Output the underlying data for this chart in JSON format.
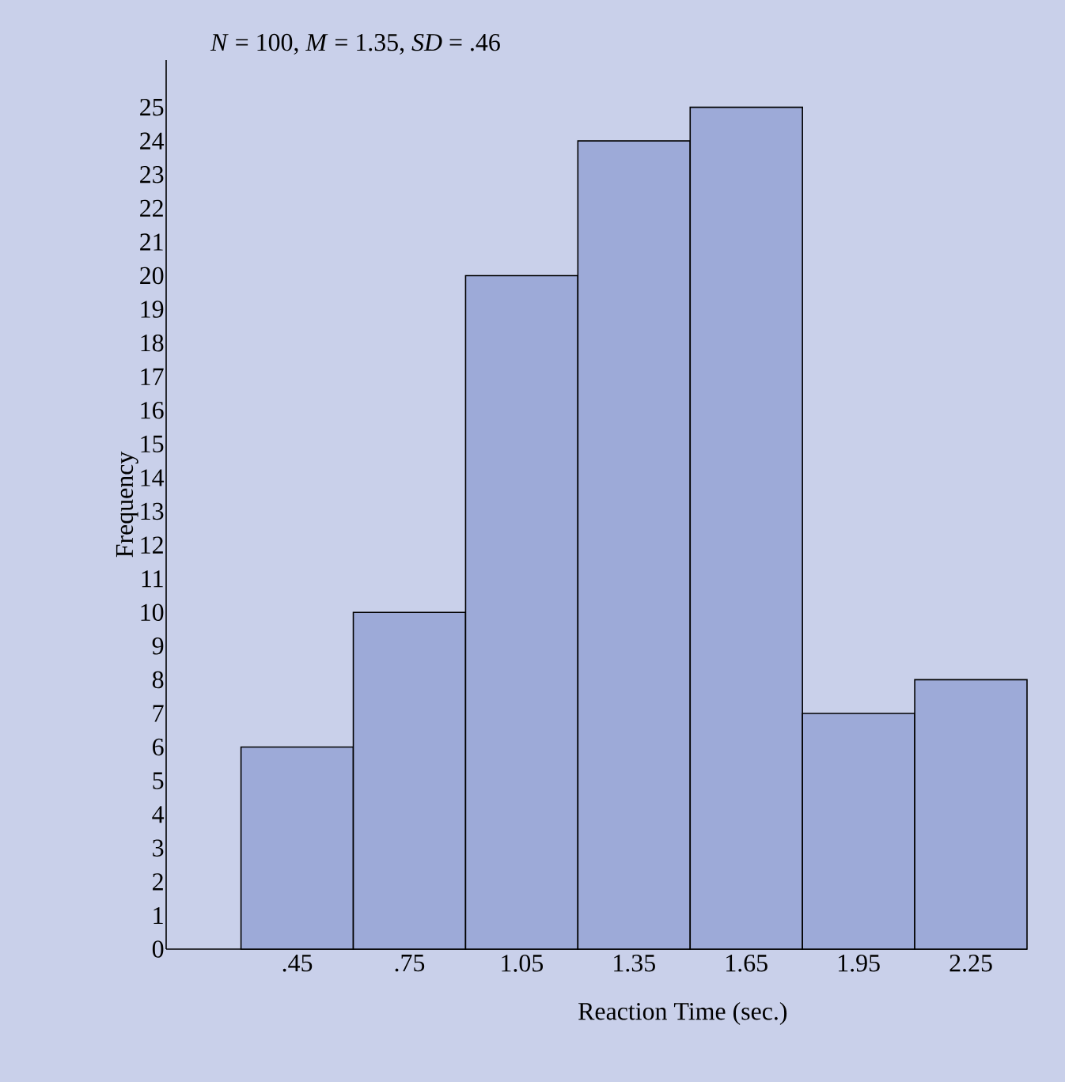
{
  "chart_data": {
    "type": "histogram",
    "xlabel": "Reaction Time (sec.)",
    "ylabel": "Frequency",
    "annotations": [
      "*N* = 100, *M* = 1.35, *SD* = .46"
    ],
    "bins": [
      0.3,
      0.6,
      0.9,
      1.2,
      1.5,
      1.8,
      2.1,
      2.4
    ],
    "values": [
      6,
      10,
      20,
      24,
      25,
      7,
      8
    ],
    "color": "#9daad8",
    "xlim": [
      0.1,
      2.4
    ],
    "ylim": [
      0,
      26.4
    ],
    "xticks": [
      {
        "value": 0.45,
        "label": ".45"
      },
      {
        "value": 0.75,
        "label": ".75"
      },
      {
        "value": 1.05,
        "label": "1.05"
      },
      {
        "value": 1.35,
        "label": "1.35"
      },
      {
        "value": 1.65,
        "label": "1.65"
      },
      {
        "value": 1.95,
        "label": "1.95"
      },
      {
        "value": 2.25,
        "label": "2.25"
      }
    ],
    "yticks": [
      0,
      1,
      2,
      3,
      4,
      5,
      6,
      7,
      8,
      9,
      10,
      11,
      12,
      13,
      14,
      15,
      16,
      17,
      18,
      19,
      20,
      21,
      22,
      23,
      24,
      25
    ]
  }
}
